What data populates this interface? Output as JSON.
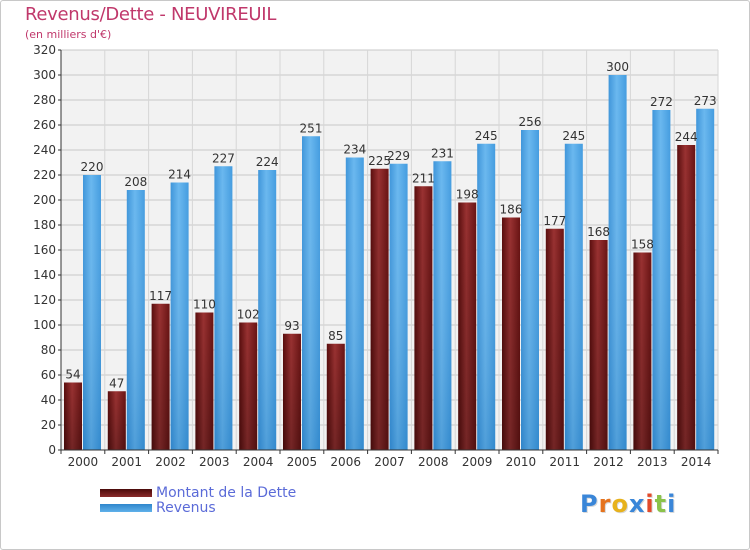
{
  "header": {
    "title": "Revenus/Dette - NEUVIREUIL",
    "subtitle": "(en milliers d'€)"
  },
  "legend": {
    "items": [
      {
        "label": "Montant de la Dette",
        "color": "#7a1c1c"
      },
      {
        "label": "Revenus",
        "color": "#3f9ee0"
      }
    ]
  },
  "logo": {
    "letters": [
      "P",
      "r",
      "o",
      "x",
      "i",
      "t",
      "i"
    ],
    "colors": [
      "#3a86d8",
      "#e5731e",
      "#e7b21c",
      "#3a86d8",
      "#e24a2a",
      "#8bc34a",
      "#3a86d8"
    ]
  },
  "chart_data": {
    "type": "bar",
    "categories": [
      "2000",
      "2001",
      "2002",
      "2003",
      "2004",
      "2005",
      "2006",
      "2007",
      "2008",
      "2009",
      "2010",
      "2011",
      "2012",
      "2013",
      "2014"
    ],
    "series": [
      {
        "name": "Montant de la Dette",
        "color": "#7a1c1c",
        "values": [
          54,
          47,
          117,
          110,
          102,
          93,
          85,
          225,
          211,
          198,
          186,
          177,
          168,
          158,
          244
        ]
      },
      {
        "name": "Revenus",
        "color": "#3f9ee0",
        "values": [
          220,
          208,
          214,
          227,
          224,
          251,
          234,
          229,
          231,
          245,
          256,
          245,
          300,
          272,
          273
        ]
      }
    ],
    "title": "Revenus/Dette - NEUVIREUIL",
    "subtitle": "(en milliers d'€)",
    "ylim": [
      0,
      320
    ],
    "yticks": [
      0,
      20,
      40,
      60,
      80,
      100,
      120,
      140,
      160,
      180,
      200,
      220,
      240,
      260,
      280,
      300,
      320
    ],
    "grid": true,
    "legend_position": "bottom-left"
  }
}
